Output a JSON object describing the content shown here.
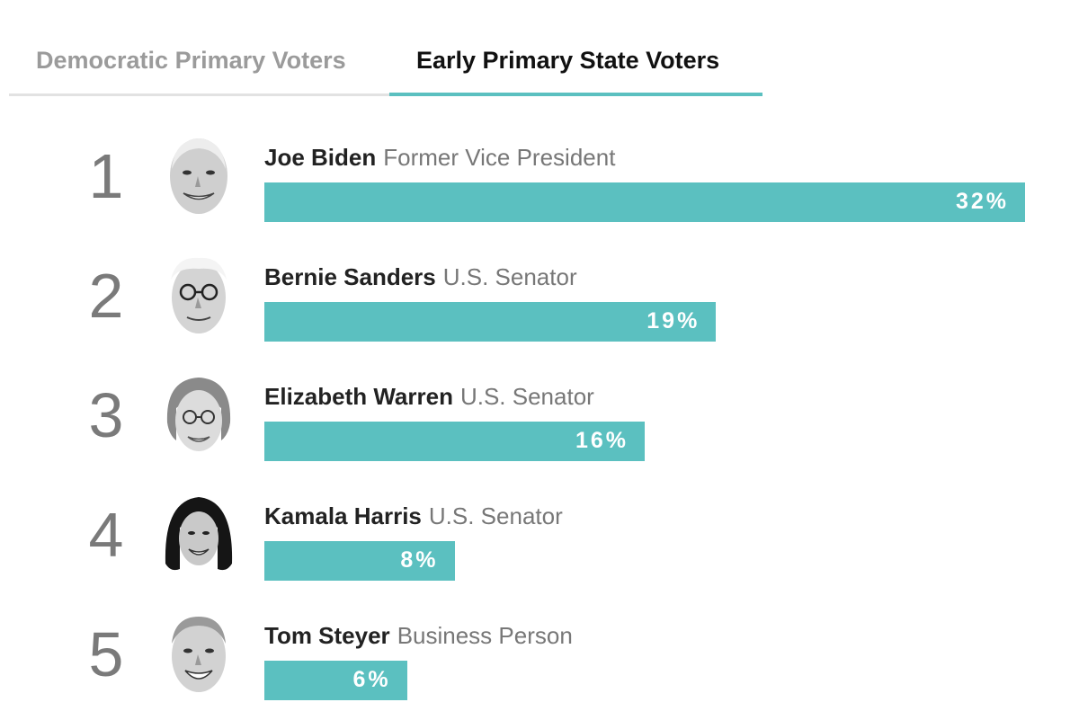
{
  "tabs": [
    {
      "label": "Democratic Primary Voters",
      "active": false
    },
    {
      "label": "Early Primary State Voters",
      "active": true
    }
  ],
  "colors": {
    "bar": "#5bc0c0",
    "active_underline": "#5bc0c0",
    "inactive_tab_text": "#9b9b9b",
    "active_tab_text": "#111111"
  },
  "chart_data": {
    "type": "bar",
    "orientation": "horizontal",
    "title": "",
    "xlabel": "",
    "ylabel": "",
    "xlim": [
      0,
      32
    ],
    "grid": false,
    "categories": [
      "Joe Biden",
      "Bernie Sanders",
      "Elizabeth Warren",
      "Kamala Harris",
      "Tom Steyer"
    ],
    "values": [
      32,
      19,
      16,
      8,
      6
    ],
    "rows": [
      {
        "rank": "1",
        "name": "Joe Biden",
        "title": "Former Vice President",
        "value": 32,
        "label": "32%",
        "avatar_icon": "joe-biden-portrait"
      },
      {
        "rank": "2",
        "name": "Bernie Sanders",
        "title": "U.S. Senator",
        "value": 19,
        "label": "19%",
        "avatar_icon": "bernie-sanders-portrait"
      },
      {
        "rank": "3",
        "name": "Elizabeth Warren",
        "title": "U.S. Senator",
        "value": 16,
        "label": "16%",
        "avatar_icon": "elizabeth-warren-portrait"
      },
      {
        "rank": "4",
        "name": "Kamala Harris",
        "title": "U.S. Senator",
        "value": 8,
        "label": "8%",
        "avatar_icon": "kamala-harris-portrait"
      },
      {
        "rank": "5",
        "name": "Tom Steyer",
        "title": "Business Person",
        "value": 6,
        "label": "6%",
        "avatar_icon": "tom-steyer-portrait"
      }
    ]
  }
}
